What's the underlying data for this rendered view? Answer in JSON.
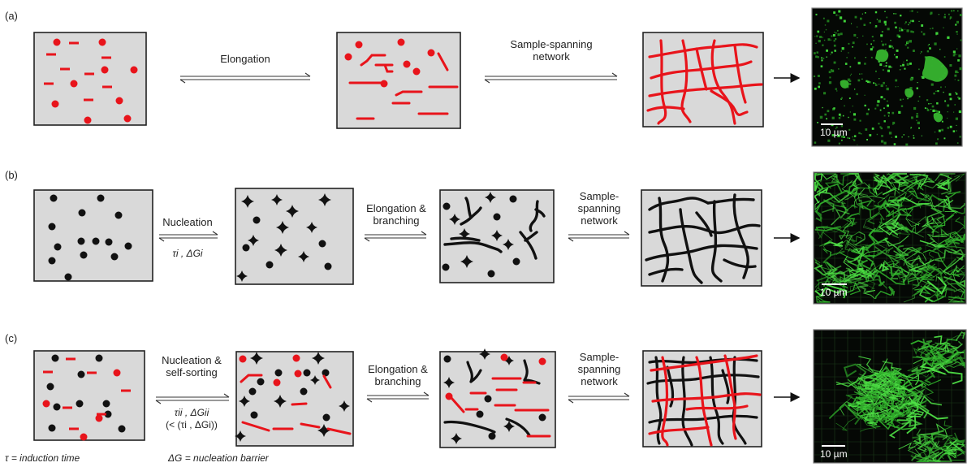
{
  "panels": [
    {
      "tag": "(a)",
      "arrows": [
        {
          "line1": "Elongation",
          "line2": "",
          "sub": "",
          "sub2": ""
        },
        {
          "line1": "Sample-spanning",
          "line2": "network",
          "sub": "",
          "sub2": ""
        }
      ],
      "micrograph": {
        "scale_label": "10 µm",
        "style": "sparse-speckled"
      }
    },
    {
      "tag": "(b)",
      "arrows": [
        {
          "line1": "Nucleation",
          "line2": "",
          "sub": "τi , ΔGi",
          "sub2": ""
        },
        {
          "line1": "Elongation &",
          "line2": "branching",
          "sub": "",
          "sub2": ""
        },
        {
          "line1": "Sample-",
          "line2": "spanning",
          "line3": "network",
          "sub": "",
          "sub2": ""
        }
      ],
      "micrograph": {
        "scale_label": "10 µm",
        "style": "dense-network"
      }
    },
    {
      "tag": "(c)",
      "arrows": [
        {
          "line1": "Nucleation &",
          "line2": "self-sorting",
          "sub": "τii , ΔGii",
          "sub2": "(< (τi , ΔGi))"
        },
        {
          "line1": "Elongation &",
          "line2": "branching",
          "sub": "",
          "sub2": ""
        },
        {
          "line1": "Sample-",
          "line2": "spanning",
          "line3": "network",
          "sub": "",
          "sub2": ""
        }
      ],
      "micrograph": {
        "scale_label": "10 µm",
        "style": "central-cluster"
      }
    }
  ],
  "legend": {
    "tau": "τ = induction time",
    "dg": "ΔG = nucleation barrier"
  },
  "colors": {
    "box_fill": "#d9d9d9",
    "box_stroke": "#222222",
    "red": "#e8141b",
    "black": "#111111",
    "micro_bg": "#050805",
    "micro_green": "#3fd23a"
  }
}
